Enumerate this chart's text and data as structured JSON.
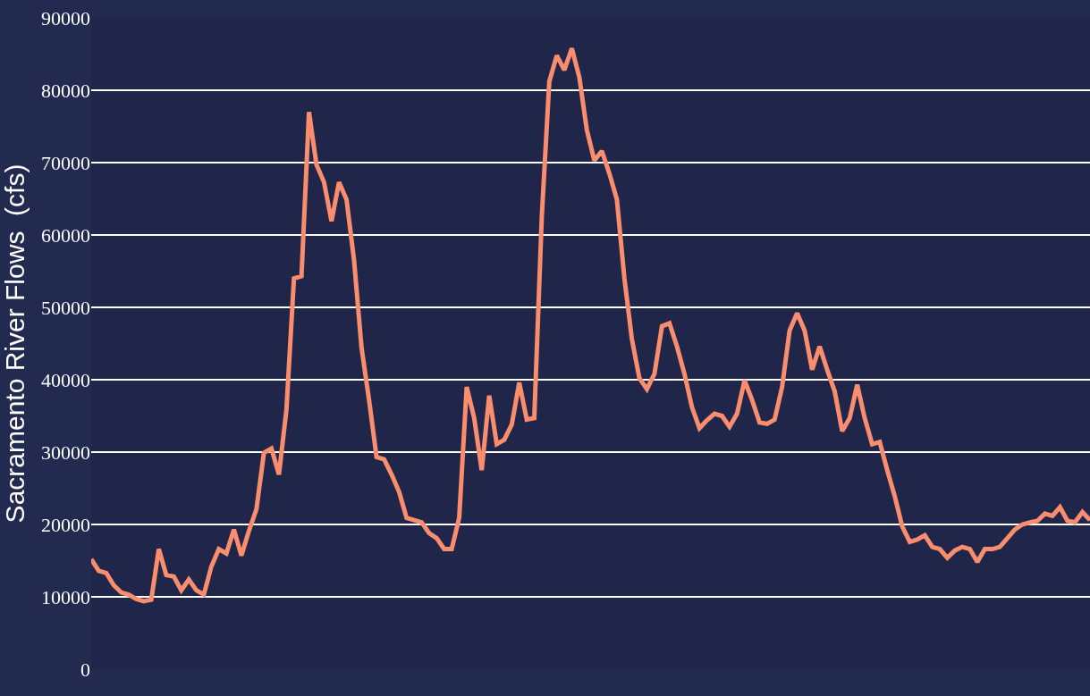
{
  "chart_data": {
    "type": "line",
    "ylabel": "Sacramento River Flows  (cfs)",
    "categories": [
      null,
      null,
      null,
      null,
      null,
      null,
      null,
      null,
      null,
      null,
      null,
      null,
      null,
      null,
      null,
      null,
      null,
      null,
      null,
      null,
      null,
      null,
      null,
      null,
      null,
      null,
      null,
      null,
      null,
      null,
      null,
      null,
      null,
      null,
      null,
      null,
      null,
      null,
      null,
      null,
      null,
      null,
      null,
      null,
      null,
      null,
      null,
      null,
      null,
      null,
      null,
      null,
      null,
      null,
      null,
      null,
      null,
      null,
      null,
      null,
      null,
      null,
      null,
      null,
      null,
      null,
      null,
      null,
      null,
      null,
      null,
      null,
      null,
      null,
      null,
      null,
      null,
      null,
      null,
      null,
      null,
      null,
      null,
      null,
      null,
      null,
      null,
      null,
      null,
      null,
      null,
      null,
      null,
      null,
      null,
      null,
      null,
      null,
      null,
      null,
      null,
      null,
      null,
      null,
      null,
      null,
      null,
      null,
      null,
      null,
      null,
      null,
      null,
      null,
      null,
      null,
      null,
      null,
      null,
      null,
      null,
      null,
      null,
      null,
      null,
      null,
      null,
      null,
      null,
      null,
      null,
      null,
      null,
      null
    ],
    "series": [
      {
        "color": "#f98d6e",
        "values": [
          15200,
          13600,
          13300,
          11600,
          10600,
          10300,
          9700,
          9400,
          9600,
          16600,
          13000,
          12800,
          10900,
          12400,
          10900,
          10300,
          14200,
          16600,
          16000,
          19300,
          15700,
          19100,
          22100,
          29900,
          30500,
          26900,
          35900,
          54000,
          54300,
          77000,
          69700,
          67300,
          61900,
          67300,
          64900,
          56500,
          44400,
          37200,
          29300,
          29000,
          26900,
          24500,
          20900,
          20600,
          20300,
          18800,
          18100,
          16600,
          16600,
          20900,
          39000,
          34700,
          27500,
          37800,
          31100,
          31700,
          33800,
          39600,
          34500,
          34700,
          62500,
          81200,
          84800,
          82800,
          85800,
          81800,
          74500,
          70300,
          71600,
          68500,
          64900,
          54000,
          45600,
          40200,
          38700,
          40800,
          47400,
          47800,
          44600,
          40800,
          36200,
          33300,
          34400,
          35300,
          35000,
          33500,
          35300,
          39900,
          37200,
          34100,
          33900,
          34500,
          39000,
          46800,
          49200,
          46800,
          41400,
          44600,
          41400,
          38400,
          32900,
          34700,
          39300,
          34700,
          31100,
          31400,
          27500,
          23900,
          19700,
          17600,
          17900,
          18500,
          16900,
          16600,
          15400,
          16400,
          16900,
          16600,
          14800,
          16600,
          16600,
          16900,
          18100,
          19300,
          20000,
          20300,
          20500,
          21500,
          21200,
          22400,
          20500,
          20300,
          21700,
          20600
        ]
      }
    ],
    "ylim": [
      0,
      90000
    ],
    "yticks": [
      0,
      10000,
      20000,
      30000,
      40000,
      50000,
      60000,
      70000,
      80000,
      90000
    ],
    "grid": "y",
    "marker": "none",
    "line_style": "solid"
  }
}
